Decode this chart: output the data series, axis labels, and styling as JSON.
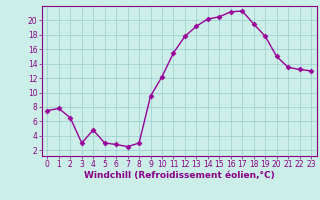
{
  "x": [
    0,
    1,
    2,
    3,
    4,
    5,
    6,
    7,
    8,
    9,
    10,
    11,
    12,
    13,
    14,
    15,
    16,
    17,
    18,
    19,
    20,
    21,
    22,
    23
  ],
  "y": [
    7.5,
    7.8,
    6.5,
    3.0,
    4.8,
    3.0,
    2.8,
    2.5,
    3.0,
    9.5,
    12.2,
    15.5,
    17.8,
    19.2,
    20.2,
    20.5,
    21.2,
    21.3,
    19.5,
    17.8,
    15.0,
    13.5,
    13.2,
    13.0
  ],
  "line_color": "#990099",
  "marker": "D",
  "markersize": 2.5,
  "linewidth": 1.0,
  "background_color": "#cceee8",
  "grid_color": "#99cccc",
  "xlabel": "Windchill (Refroidissement éolien,°C)",
  "xlabel_fontsize": 6.5,
  "yticks": [
    2,
    4,
    6,
    8,
    10,
    12,
    14,
    16,
    18,
    20
  ],
  "ylim": [
    1.2,
    22.0
  ],
  "xlim": [
    -0.5,
    23.5
  ],
  "xticks": [
    0,
    1,
    2,
    3,
    4,
    5,
    6,
    7,
    8,
    9,
    10,
    11,
    12,
    13,
    14,
    15,
    16,
    17,
    18,
    19,
    20,
    21,
    22,
    23
  ],
  "tick_fontsize": 5.5,
  "tick_color": "#880088",
  "label_color": "#880088",
  "spine_color": "#880088"
}
